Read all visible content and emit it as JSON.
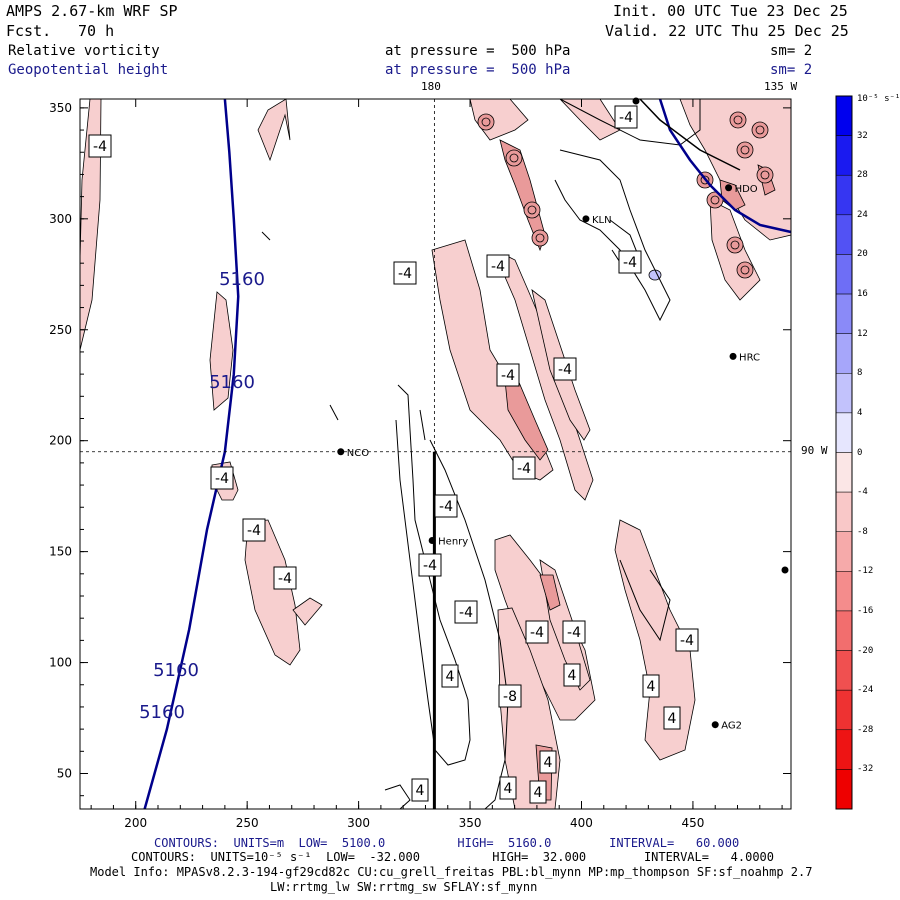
{
  "header": {
    "model": "AMPS 2.67-km WRF SP",
    "forecast_label": "Fcst.",
    "forecast_value": "70 h",
    "init": "Init. 00 UTC Tue 23 Dec 25",
    "valid": "Valid. 22 UTC Thu 25 Dec 25",
    "field1_name": "Relative vorticity",
    "field1_level": "at pressure =  500 hPa",
    "field1_sm": "sm= 2",
    "field2_name": "Geopotential height",
    "field2_level": "at pressure =  500 hPa",
    "field2_sm": "sm= 2"
  },
  "map": {
    "top_labels": [
      "180",
      "135 W"
    ],
    "right_label": "90 W",
    "stations": [
      {
        "name": "NCO",
        "x": 292,
        "y": 195
      },
      {
        "name": "Henry",
        "x": 333,
        "y": 155
      },
      {
        "name": "KLN",
        "x": 402,
        "y": 300
      },
      {
        "name": "HRC",
        "x": 468,
        "y": 238
      },
      {
        "name": "AG2",
        "x": 460,
        "y": 72
      },
      {
        "name": "HDO",
        "x": 466,
        "y": 314
      }
    ],
    "height_contour_labels": [
      "5160",
      "5160",
      "5160",
      "5160"
    ],
    "vorticity_contour_labels": [
      "-4",
      "-4",
      "-4",
      "-4",
      "-4",
      "-4",
      "-4",
      "-4",
      "-4",
      "-4",
      "-4",
      "-4",
      "-4",
      "-4",
      "-4",
      "-4",
      "-4",
      "-8",
      "4",
      "4",
      "4",
      "4",
      "4",
      "4",
      "4",
      "4"
    ],
    "colors": {
      "height_line": "#00008b",
      "positive": "#0000ee",
      "negative": "#ee0000",
      "pink_fill": "#f7cfcf"
    }
  },
  "colorbar": {
    "unit_label": "10⁻⁵ s⁻¹",
    "ticks": [
      "32",
      "28",
      "24",
      "20",
      "16",
      "12",
      "8",
      "4",
      "0",
      "-4",
      "-8",
      "-12",
      "-16",
      "-20",
      "-24",
      "-28",
      "-32"
    ],
    "colors_top_to_bottom": [
      "#0000ee",
      "#1a1af0",
      "#3636f2",
      "#5252f4",
      "#6e6ef6",
      "#8a8af8",
      "#a6a6fa",
      "#c2c2fc",
      "#e6e6fe",
      "#fbe6e6",
      "#f9c8c8",
      "#f6aaaa",
      "#f48c8c",
      "#f26e6e",
      "#f05050",
      "#ee3232",
      "#ee1414",
      "#ee0000"
    ]
  },
  "footer": {
    "line1": "CONTOURS:  UNITS=m  LOW=  5100.0          HIGH=  5160.0        INTERVAL=   60.000",
    "line2": "CONTOURS:  UNITS=10⁻⁵ s⁻¹  LOW=  -32.000          HIGH=  32.000        INTERVAL=   4.0000",
    "line3": "Model Info: MPASv8.2.3-194-gf29cd82c CU:cu_grell_freitas PBL:bl_mynn MP:mp_thompson SF:sf_noahmp 2.7",
    "line4": "LW:rrtmg_lw SW:rrtmg_sw SFLAY:sf_mynn"
  },
  "chart_data": {
    "type": "heatmap",
    "title": "Relative vorticity / Geopotential height at 500 hPa",
    "xlim": [
      175,
      494
    ],
    "ylim": [
      34,
      354
    ],
    "x_ticks": [
      200,
      250,
      300,
      350,
      400,
      450
    ],
    "y_ticks": [
      50,
      100,
      150,
      200,
      250,
      300,
      350
    ],
    "geopotential_height_contour": {
      "value": 5160,
      "points": [
        [
          204,
          34
        ],
        [
          214,
          70
        ],
        [
          224,
          115
        ],
        [
          232,
          160
        ],
        [
          240,
          195
        ],
        [
          244,
          230
        ],
        [
          246,
          265
        ],
        [
          244,
          300
        ],
        [
          242,
          330
        ],
        [
          240,
          354
        ]
      ]
    },
    "vertical_line_x": 334,
    "reference_lines": {
      "x": 334,
      "y": 195
    }
  }
}
